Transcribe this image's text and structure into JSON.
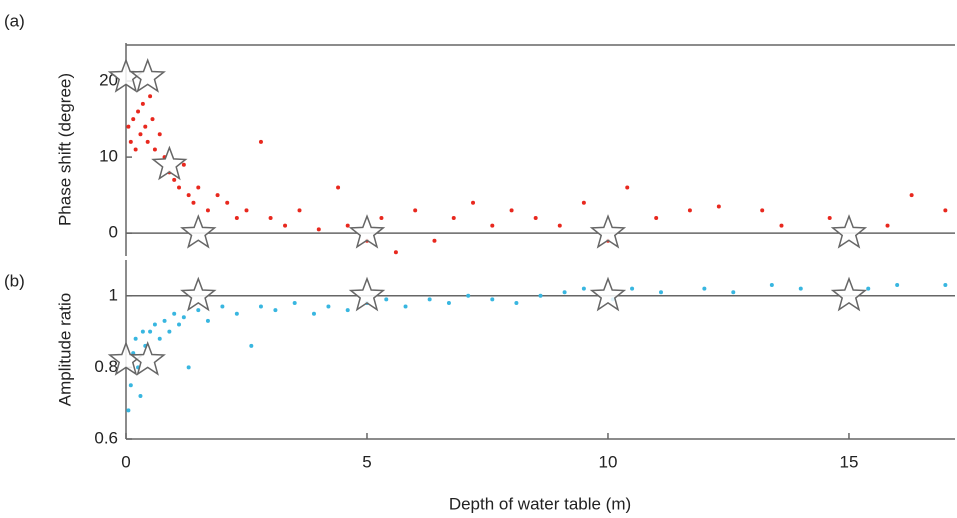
{
  "chart_data": [
    {
      "type": "scatter",
      "panel_label": "(a)",
      "ylabel": "Phase shift (degree)",
      "xlim": [
        0,
        17.2
      ],
      "ylim": [
        -3,
        25
      ],
      "yticks": [
        0,
        10,
        20
      ],
      "hline": 0,
      "frame_top": true,
      "series": [
        {
          "color": "#e8281e",
          "marker": "dot",
          "x": [
            0.05,
            0.1,
            0.15,
            0.2,
            0.25,
            0.3,
            0.35,
            0.4,
            0.45,
            0.5,
            0.55,
            0.6,
            0.7,
            0.8,
            0.9,
            1.0,
            1.1,
            1.2,
            1.3,
            1.4,
            1.5,
            1.7,
            1.9,
            2.1,
            2.3,
            2.5,
            2.8,
            3.0,
            3.3,
            3.6,
            4.0,
            4.4,
            4.6,
            5.0,
            5.3,
            5.6,
            6.0,
            6.4,
            6.8,
            7.2,
            7.6,
            8.0,
            8.5,
            9.0,
            9.5,
            10.0,
            10.4,
            11.0,
            11.7,
            12.3,
            13.2,
            13.6,
            14.6,
            15.8,
            16.3,
            17.0
          ],
          "values": [
            14,
            12,
            15,
            11,
            16,
            13,
            17,
            14,
            12,
            18,
            15,
            11,
            13,
            10,
            8,
            7,
            6,
            9,
            5,
            4,
            6,
            3,
            5,
            4,
            2,
            3,
            12,
            2,
            1,
            3,
            0.5,
            6,
            1,
            -1,
            2,
            -2.5,
            3,
            -1,
            2,
            4,
            1,
            3,
            2,
            1,
            4,
            -1,
            6,
            2,
            3,
            3.5,
            3,
            1,
            2,
            1,
            5,
            3
          ]
        },
        {
          "color": "#ffffff",
          "marker": "star",
          "x": [
            0,
            0.45,
            0.9,
            1.5,
            5,
            10,
            15
          ],
          "values": [
            20.5,
            20.5,
            9,
            0,
            0,
            0,
            0
          ]
        }
      ]
    },
    {
      "type": "scatter",
      "panel_label": "(b)",
      "ylabel": "Amplitude ratio",
      "xlabel": "Depth of water table (m)",
      "xlim": [
        0,
        17.2
      ],
      "xticks": [
        0,
        5,
        10,
        15
      ],
      "ylim": [
        0.6,
        1.1
      ],
      "yticks": [
        0.6,
        0.8,
        1
      ],
      "hline": 1,
      "frame_top": false,
      "series": [
        {
          "color": "#38b6e0",
          "marker": "dot",
          "x": [
            0.05,
            0.1,
            0.15,
            0.2,
            0.25,
            0.3,
            0.35,
            0.4,
            0.5,
            0.6,
            0.7,
            0.8,
            0.9,
            1.0,
            1.1,
            1.2,
            1.3,
            1.5,
            1.7,
            2.0,
            2.3,
            2.6,
            2.8,
            3.1,
            3.5,
            3.9,
            4.2,
            4.6,
            5.0,
            5.4,
            5.8,
            6.3,
            6.7,
            7.1,
            7.6,
            8.1,
            8.6,
            9.1,
            9.5,
            10.1,
            10.5,
            11.1,
            12.0,
            12.6,
            13.4,
            14.0,
            15.4,
            16.0,
            17.0
          ],
          "values": [
            0.68,
            0.75,
            0.84,
            0.88,
            0.8,
            0.72,
            0.9,
            0.86,
            0.9,
            0.92,
            0.88,
            0.93,
            0.9,
            0.95,
            0.92,
            0.94,
            0.8,
            0.96,
            0.93,
            0.97,
            0.95,
            0.86,
            0.97,
            0.96,
            0.98,
            0.95,
            0.97,
            0.96,
            0.98,
            0.99,
            0.97,
            0.99,
            0.98,
            1.0,
            0.99,
            0.98,
            1.0,
            1.01,
            1.02,
            0.99,
            1.02,
            1.01,
            1.02,
            1.01,
            1.03,
            1.02,
            1.02,
            1.03,
            1.03
          ]
        },
        {
          "color": "#ffffff",
          "marker": "star",
          "x": [
            0,
            0.45,
            1.5,
            5,
            10,
            15
          ],
          "values": [
            0.82,
            0.82,
            1,
            1,
            1,
            1
          ]
        }
      ]
    }
  ]
}
